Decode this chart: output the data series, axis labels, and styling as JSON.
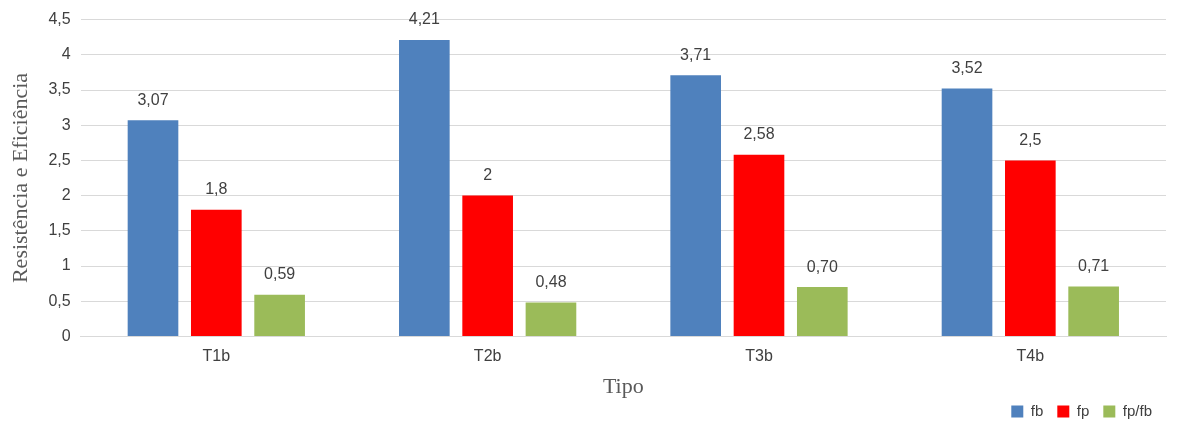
{
  "chart_data": {
    "type": "bar",
    "xlabel": "Tipo",
    "ylabel": "Resistência e Eficiência",
    "categories": [
      "T1b",
      "T2b",
      "T3b",
      "T4b"
    ],
    "series": [
      {
        "name": "fb",
        "color": "#4f81bd",
        "values": [
          3.07,
          4.21,
          3.71,
          3.52
        ],
        "value_labels": [
          "3,07",
          "4,21",
          "3,71",
          "3,52"
        ]
      },
      {
        "name": "fp",
        "color": "#ff0000",
        "values": [
          1.8,
          2,
          2.58,
          2.5
        ],
        "value_labels": [
          "1,8",
          "2",
          "2,58",
          "2,5"
        ]
      },
      {
        "name": "fp/fb",
        "color": "#9bbb59",
        "values": [
          0.59,
          0.48,
          0.7,
          0.71
        ],
        "value_labels": [
          "0,59",
          "0,48",
          "0,70",
          "0,71"
        ]
      }
    ],
    "ylim": [
      0,
      4.5
    ],
    "yticks": [
      0,
      {
        "value": 0.5,
        "label": "0,5"
      },
      1,
      {
        "value": 1.5,
        "label": "1,5"
      },
      2,
      {
        "value": 2.5,
        "label": "2,5"
      },
      3,
      {
        "value": 3.5,
        "label": "3,5"
      },
      4,
      {
        "value": 4.5,
        "label": "4,5"
      }
    ],
    "grid": "y",
    "legend": "bottom right"
  }
}
